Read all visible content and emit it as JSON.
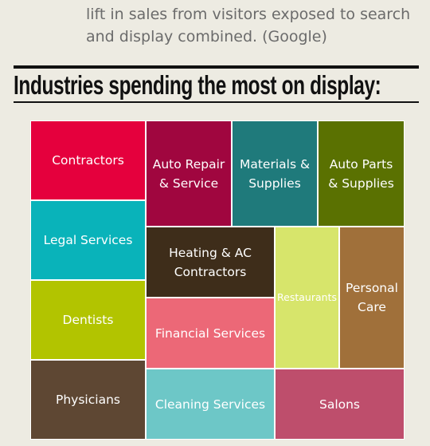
{
  "intro_text": "lift in sales from visitors exposed to search and display combined. (Google)",
  "heading": "Industries spending the most on display:",
  "chart_data": {
    "type": "treemap",
    "title": "Industries spending the most on display:",
    "tiles": [
      {
        "label": "Contractors",
        "color": "#e5003d"
      },
      {
        "label": "Legal Services",
        "color": "#09b3ba"
      },
      {
        "label": "Dentists",
        "color": "#b2c400"
      },
      {
        "label": "Physicians",
        "color": "#5e4733"
      },
      {
        "label": "Auto Repair & Service",
        "color": "#a0063f"
      },
      {
        "label": "Materials & Supplies",
        "color": "#1f7a7b"
      },
      {
        "label": "Auto Parts & Supplies",
        "color": "#5a7101"
      },
      {
        "label": "Heating & AC Contractors",
        "color": "#3e2d1a"
      },
      {
        "label": "Restaurants",
        "color": "#d7e56b"
      },
      {
        "label": "Personal Care",
        "color": "#a0703a"
      },
      {
        "label": "Financial Services",
        "color": "#ec6877"
      },
      {
        "label": "Cleaning Services",
        "color": "#6dc7c7"
      },
      {
        "label": "Salons",
        "color": "#be4e6c"
      }
    ]
  }
}
